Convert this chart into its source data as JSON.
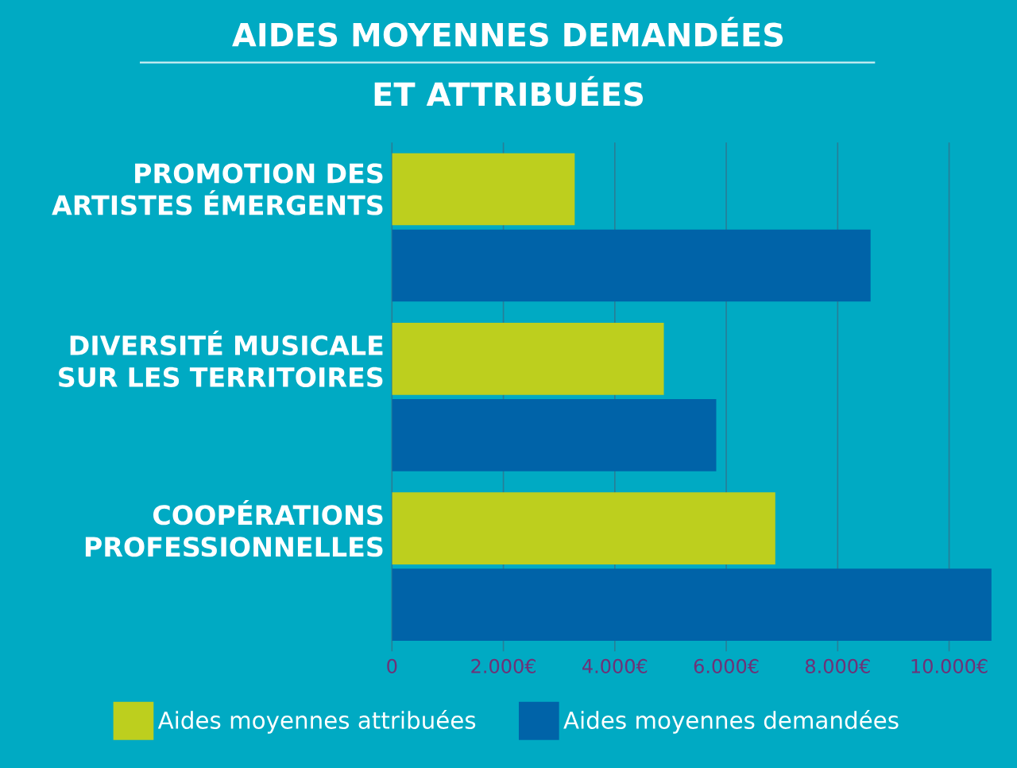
{
  "chart_data": {
    "type": "bar",
    "orientation": "horizontal",
    "title": "AIDES MOYENNES DEMANDÉES",
    "subtitle": "ET ATTRIBUÉES",
    "categories": [
      "PROMOTION DES ARTISTES ÉMERGENTS",
      "DIVERSITÉ MUSICALE SUR LES TERRITOIRES",
      "COOPÉRATIONS PROFESSIONNELLES"
    ],
    "series": [
      {
        "name": "Aides moyennes attribuées",
        "color": "#bdcf1e",
        "values": [
          3280,
          4880,
          6880
        ]
      },
      {
        "name": "Aides moyennes demandées",
        "color": "#0063a8",
        "values": [
          8590,
          5820,
          10760
        ]
      }
    ],
    "xlim": [
      0,
      10800
    ],
    "xticks": [
      0,
      {
        "value": 2000,
        "label": "2.000€"
      },
      {
        "value": 4000,
        "label": "4.000€"
      },
      {
        "value": 6000,
        "label": "6.000€"
      },
      {
        "value": 8000,
        "label": "8.000€"
      },
      {
        "value": 10000,
        "label": "10.000€"
      }
    ],
    "grid": "x",
    "legend": "bottom"
  }
}
